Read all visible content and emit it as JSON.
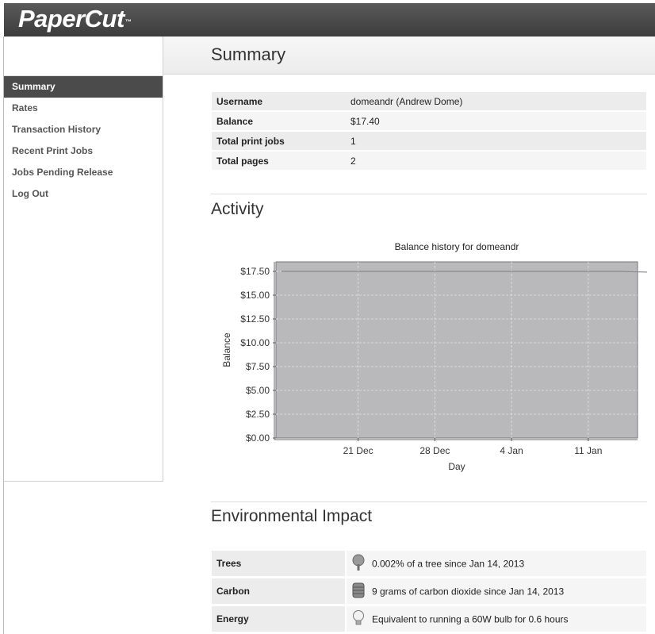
{
  "app": {
    "logo_text": "PaperCut",
    "logo_tm": "™"
  },
  "sidebar": {
    "items": [
      {
        "label": "Summary",
        "active": true
      },
      {
        "label": "Rates"
      },
      {
        "label": "Transaction History"
      },
      {
        "label": "Recent Print Jobs"
      },
      {
        "label": "Jobs Pending Release"
      },
      {
        "label": "Log Out"
      }
    ]
  },
  "page": {
    "title": "Summary"
  },
  "summary": {
    "rows": [
      {
        "label": "Username",
        "value": "domeandr (Andrew Dome)"
      },
      {
        "label": "Balance",
        "value": "$17.40"
      },
      {
        "label": "Total print jobs",
        "value": "1"
      },
      {
        "label": "Total pages",
        "value": "2"
      }
    ]
  },
  "activity": {
    "title": "Activity"
  },
  "chart_data": {
    "type": "line",
    "title": "Balance history for domeandr",
    "xlabel": "Day",
    "ylabel": "Balance",
    "y_ticks": [
      "$0.00",
      "$2.50",
      "$5.00",
      "$7.50",
      "$10.00",
      "$12.50",
      "$15.00",
      "$17.50"
    ],
    "x_ticks": [
      "21 Dec",
      "28 Dec",
      "4 Jan",
      "11 Jan"
    ],
    "ylim": [
      0,
      18.5
    ],
    "grid": true,
    "series": [
      {
        "x": [
          "14 Dec",
          "14 Jan",
          "17 Jan"
        ],
        "y": [
          17.5,
          17.5,
          17.4
        ]
      }
    ],
    "colors": {
      "plot_bg": "#b9b9bc",
      "line": "#888888",
      "grid": "#e4e4e6"
    }
  },
  "environment": {
    "title": "Environmental Impact",
    "rows": [
      {
        "label": "Trees",
        "icon": "tree-icon",
        "value": "0.002% of a tree since Jan 14, 2013"
      },
      {
        "label": "Carbon",
        "icon": "barrel-icon",
        "value": "9 grams of carbon dioxide since Jan 14, 2013"
      },
      {
        "label": "Energy",
        "icon": "lightbulb-icon",
        "value": "Equivalent to running a 60W bulb for 0.6 hours"
      }
    ]
  }
}
